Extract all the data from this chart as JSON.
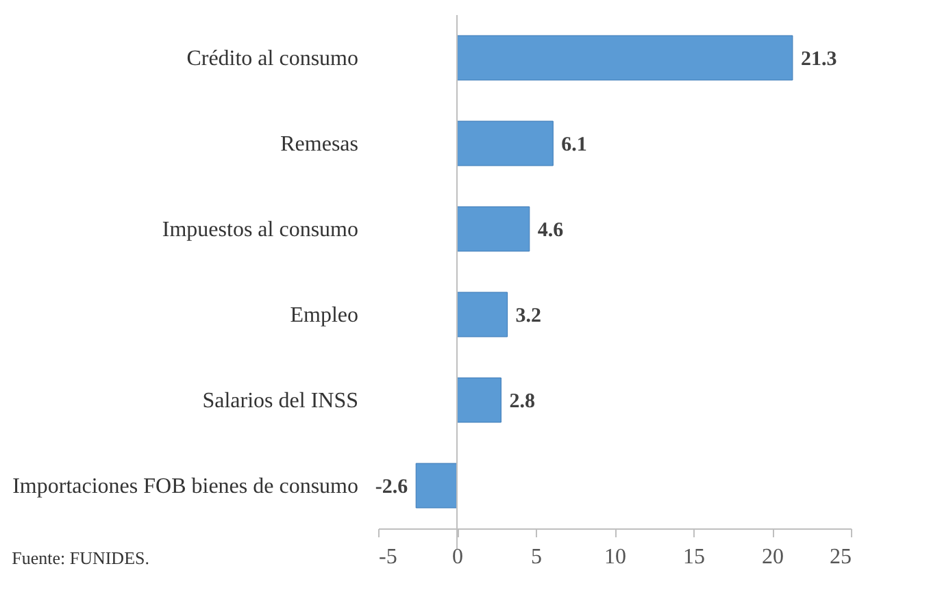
{
  "chart_data": {
    "type": "bar",
    "orientation": "horizontal",
    "categories": [
      "Crédito al consumo",
      "Remesas",
      "Impuestos al consumo",
      "Empleo",
      "Salarios del INSS",
      "Importaciones FOB bienes de consumo"
    ],
    "values": [
      21.3,
      6.1,
      4.6,
      3.2,
      2.8,
      -2.6
    ],
    "color": "#5b9bd5",
    "xlim": [
      -5,
      25
    ],
    "xticks": [
      -5,
      0,
      5,
      10,
      15,
      20,
      25
    ],
    "data_labels": true,
    "annotations": [
      "Fuente: FUNIDES."
    ]
  }
}
